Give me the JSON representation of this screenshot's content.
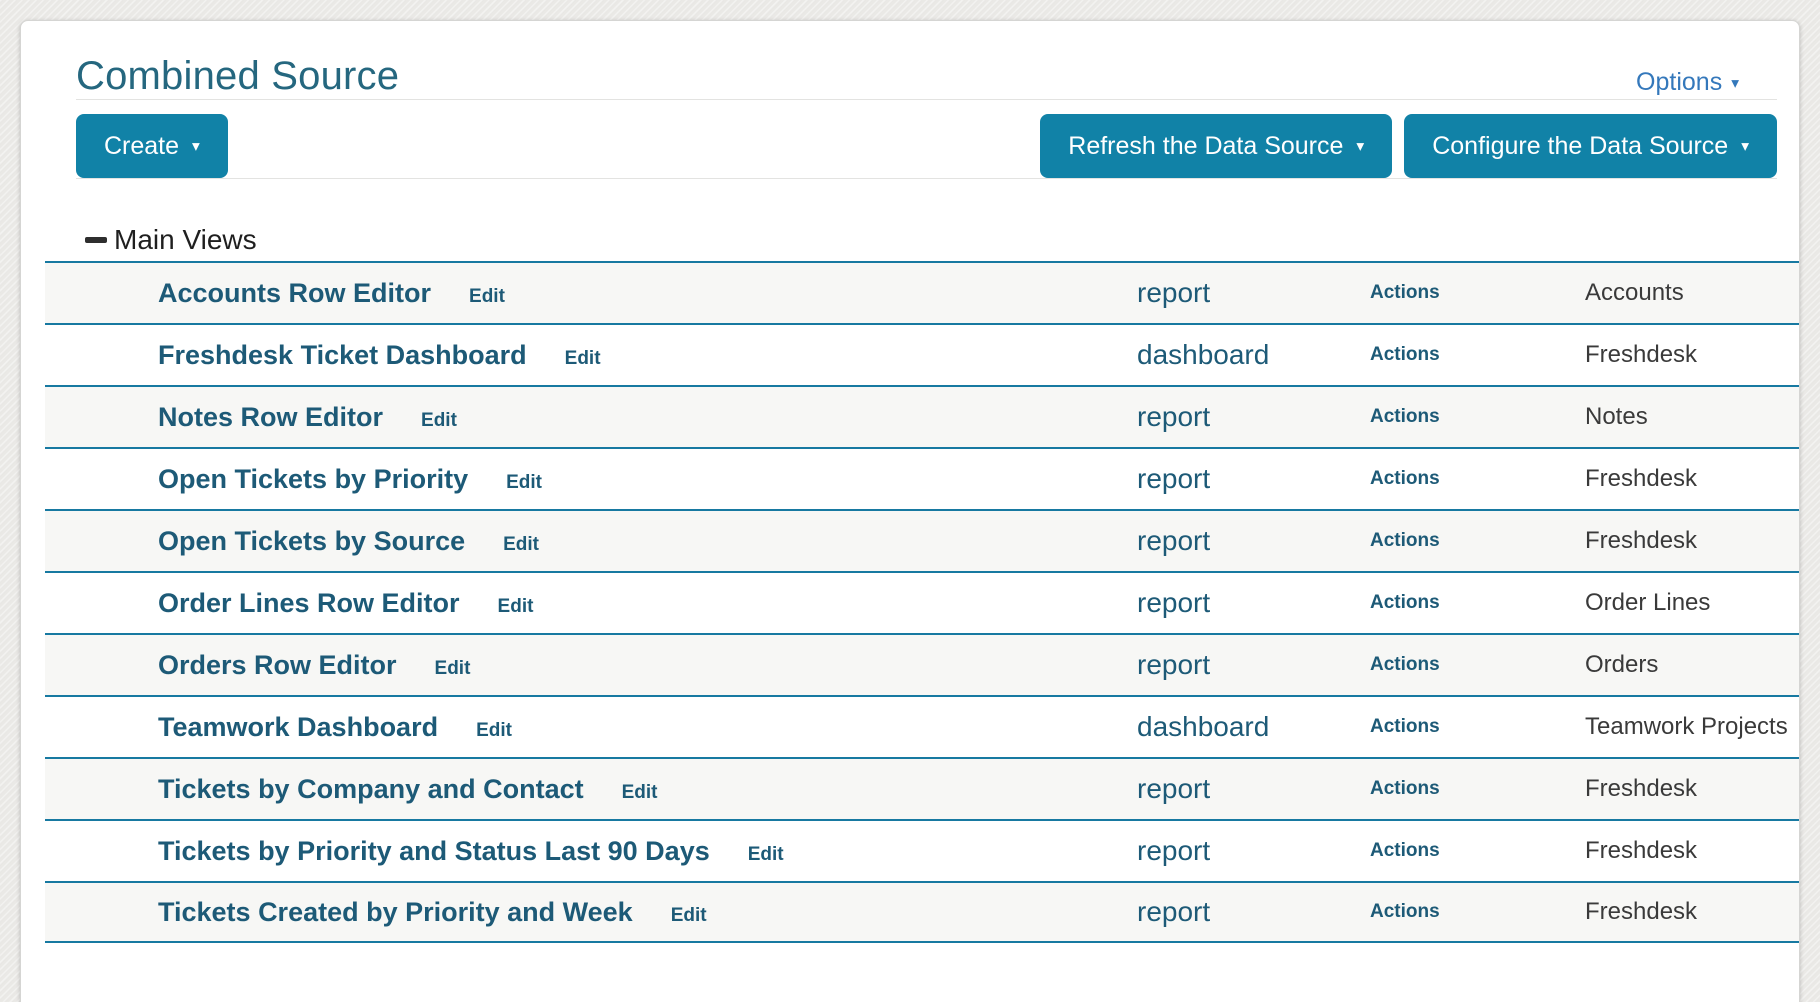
{
  "page": {
    "title": "Combined Source",
    "options_label": "Options"
  },
  "icons": {
    "caret_down": "▾"
  },
  "toolbar": {
    "create_label": "Create",
    "refresh_label": "Refresh the Data Source",
    "configure_label": "Configure the Data Source"
  },
  "section": {
    "title": "Main Views"
  },
  "views_table": {
    "edit_label": "Edit",
    "actions_label": "Actions",
    "rows": [
      {
        "name": "Accounts Row Editor",
        "type": "report",
        "source": "Accounts"
      },
      {
        "name": "Freshdesk Ticket Dashboard",
        "type": "dashboard",
        "source": "Freshdesk"
      },
      {
        "name": "Notes Row Editor",
        "type": "report",
        "source": "Notes"
      },
      {
        "name": "Open Tickets by Priority",
        "type": "report",
        "source": "Freshdesk"
      },
      {
        "name": "Open Tickets by Source",
        "type": "report",
        "source": "Freshdesk"
      },
      {
        "name": "Order Lines Row Editor",
        "type": "report",
        "source": "Order Lines"
      },
      {
        "name": "Orders Row Editor",
        "type": "report",
        "source": "Orders"
      },
      {
        "name": "Teamwork Dashboard",
        "type": "dashboard",
        "source": "Teamwork Projects"
      },
      {
        "name": "Tickets by Company and Contact",
        "type": "report",
        "source": "Freshdesk"
      },
      {
        "name": "Tickets by Priority and Status Last 90 Days",
        "type": "report",
        "source": "Freshdesk"
      },
      {
        "name": "Tickets Created by Priority and Week",
        "type": "report",
        "source": "Freshdesk"
      }
    ]
  },
  "colors": {
    "accent_teal": "#1182a7",
    "title_teal": "#25677f",
    "link_teal": "#1d5a77",
    "options_blue": "#3478bb",
    "row_border_teal": "#1779a1",
    "row_alt_bg": "#f7f7f5",
    "source_text": "#3a3a3a",
    "page_bg": "#eae9e6"
  }
}
